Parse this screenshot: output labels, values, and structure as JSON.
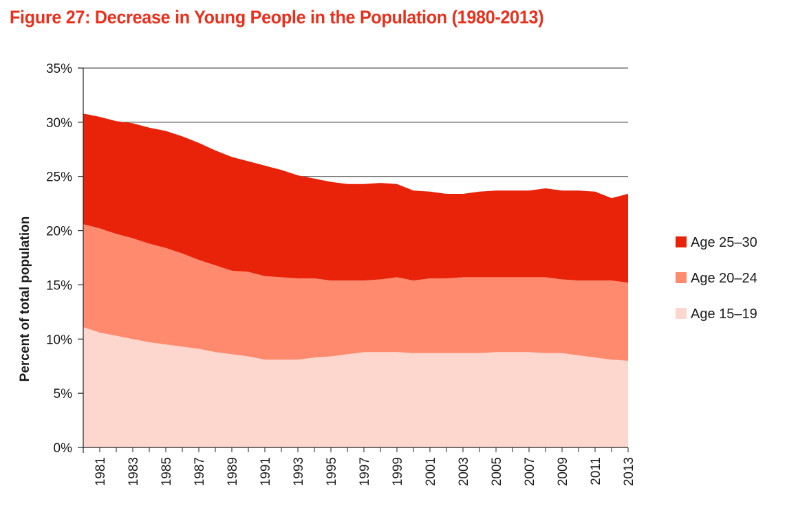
{
  "title": "Figure 27: Decrease in Young People in the Population (1980-2013)",
  "colors": {
    "title": "#e8301c",
    "age_25_30": "#e8230a",
    "age_20_24": "#ff8a6e",
    "age_15_19": "#fdd7cd",
    "grid": "#333333",
    "axis": "#222222"
  },
  "chart_data": {
    "type": "area",
    "stacked": true,
    "title": "Figure 27: Decrease in Young People in the Population (1980-2013)",
    "xlabel": "",
    "ylabel": "Percent of total population",
    "ylim": [
      0,
      35
    ],
    "yticks": [
      "0%",
      "5%",
      "10%",
      "15%",
      "20%",
      "25%",
      "30%",
      "35%"
    ],
    "ytick_values": [
      0,
      5,
      10,
      15,
      20,
      25,
      30,
      35
    ],
    "xticks": [
      "1981",
      "1983",
      "1985",
      "1987",
      "1989",
      "1991",
      "1993",
      "1995",
      "1997",
      "1999",
      "2001",
      "2003",
      "2005",
      "2007",
      "2009",
      "2011",
      "2013"
    ],
    "x": [
      1980,
      1981,
      1982,
      1983,
      1984,
      1985,
      1986,
      1987,
      1988,
      1989,
      1990,
      1991,
      1992,
      1993,
      1994,
      1995,
      1996,
      1997,
      1998,
      1999,
      2000,
      2001,
      2002,
      2003,
      2004,
      2005,
      2006,
      2007,
      2008,
      2009,
      2010,
      2011,
      2012,
      2013
    ],
    "grid": "horizontal at 25%, 30%, 35%",
    "legend_position": "right",
    "series": [
      {
        "name": "Age 15–19",
        "color": "#fdd7cd",
        "values": [
          11.1,
          10.6,
          10.3,
          10.0,
          9.7,
          9.5,
          9.3,
          9.1,
          8.8,
          8.6,
          8.4,
          8.1,
          8.1,
          8.1,
          8.3,
          8.4,
          8.6,
          8.8,
          8.8,
          8.8,
          8.7,
          8.7,
          8.7,
          8.7,
          8.7,
          8.8,
          8.8,
          8.8,
          8.7,
          8.7,
          8.5,
          8.3,
          8.1,
          8.0
        ]
      },
      {
        "name": "Age 20–24",
        "color": "#ff8a6e",
        "values": [
          9.5,
          9.6,
          9.4,
          9.3,
          9.1,
          8.9,
          8.6,
          8.2,
          8.0,
          7.7,
          7.8,
          7.7,
          7.6,
          7.5,
          7.3,
          7.0,
          6.8,
          6.6,
          6.7,
          6.9,
          6.7,
          6.9,
          6.9,
          7.0,
          7.0,
          6.9,
          6.9,
          6.9,
          7.0,
          6.8,
          6.9,
          7.1,
          7.3,
          7.2
        ]
      },
      {
        "name": "Age 25–30",
        "color": "#e8230a",
        "values": [
          10.2,
          10.3,
          10.4,
          10.6,
          10.7,
          10.8,
          10.8,
          10.8,
          10.6,
          10.5,
          10.2,
          10.2,
          9.9,
          9.5,
          9.2,
          9.1,
          8.9,
          8.9,
          8.9,
          8.6,
          8.3,
          8.0,
          7.8,
          7.7,
          7.9,
          8.0,
          8.0,
          8.0,
          8.2,
          8.2,
          8.3,
          8.2,
          7.6,
          8.2
        ]
      }
    ],
    "legend": [
      "Age 25–30",
      "Age 20–24",
      "Age 15–19"
    ]
  }
}
